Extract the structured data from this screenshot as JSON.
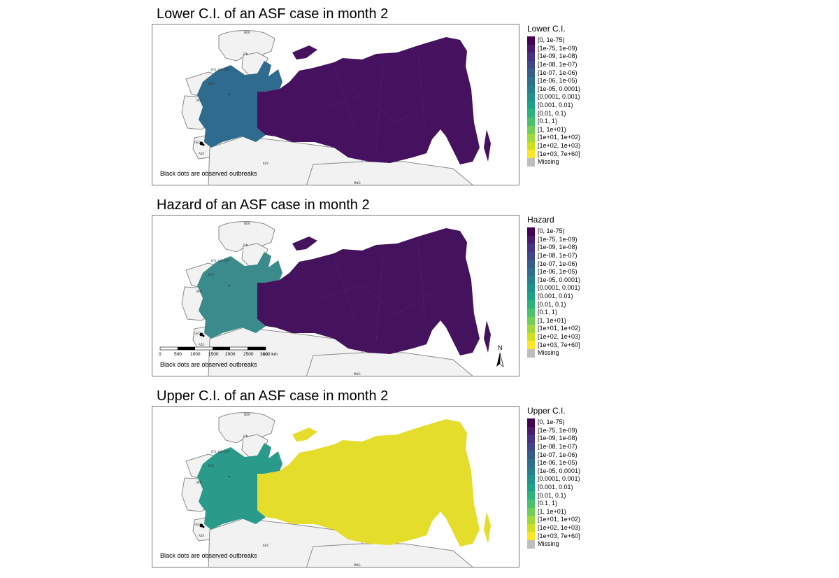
{
  "panels": [
    {
      "title": "Lower C.I. of an ASF case in month  2",
      "legend_title": "Lower C.I.",
      "note": "Black dots are observed outbreaks",
      "show_scale": false,
      "show_north": false,
      "west_color": "#2f6b8e",
      "east_color": "#46115f"
    },
    {
      "title": "Hazard of an ASF case in month  2",
      "legend_title": "Hazard",
      "note": "Black dots are observed outbreaks",
      "show_scale": true,
      "show_north": true,
      "west_color": "#3b8b8c",
      "east_color": "#45135e"
    },
    {
      "title": "Upper C.I. of an ASF case in month  2",
      "legend_title": "Upper C.I.",
      "note": "Black dots are observed outbreaks",
      "show_scale": false,
      "show_north": false,
      "west_color": "#2a9a8a",
      "east_color": "#e4dd2c"
    }
  ],
  "legend": {
    "entries": [
      {
        "label": "[0, 1e-75)",
        "color": "#440154"
      },
      {
        "label": "[1e-75, 1e-09)",
        "color": "#481b6d"
      },
      {
        "label": "[1e-09, 1e-08)",
        "color": "#46327e"
      },
      {
        "label": "[1e-08, 1e-07)",
        "color": "#3f4788"
      },
      {
        "label": "[1e-07, 1e-06)",
        "color": "#365c8d"
      },
      {
        "label": "[1e-06, 1e-05)",
        "color": "#2e6e8e"
      },
      {
        "label": "[1e-05, 0.0001)",
        "color": "#277f8e"
      },
      {
        "label": "[0.0001, 0.001)",
        "color": "#21918c"
      },
      {
        "label": "[0.001, 0.01)",
        "color": "#1fa187"
      },
      {
        "label": "[0.01, 0.1)",
        "color": "#2db27d"
      },
      {
        "label": "[0.1, 1)",
        "color": "#4ac16d"
      },
      {
        "label": "[1, 1e+01)",
        "color": "#71cf57"
      },
      {
        "label": "[1e+01, 1e+02)",
        "color": "#9fda3a"
      },
      {
        "label": "[1e+02, 1e+03)",
        "color": "#cfe11c"
      },
      {
        "label": "[1e+03, 7e+60]",
        "color": "#fde725"
      },
      {
        "label": "Missing",
        "color": "#bebebe"
      }
    ]
  },
  "map_labels": {
    "nor": "NOR",
    "fin": "FIN",
    "ltu": "LTU",
    "lva": "LVA",
    "est": "EST",
    "blr": "BLR",
    "ukr": "UKR",
    "geo": "GEO",
    "aze": "AZE",
    "kaz": "KAZ",
    "mng": "MNG"
  },
  "scale_bar": {
    "ticks": [
      "0",
      "500",
      "1000",
      "1500",
      "2000",
      "2500",
      "3000 km"
    ]
  },
  "north_arrow": {
    "label": "N"
  },
  "colors": {
    "neighbor_fill": "#f2f2f2",
    "border_stroke": "#8a8a8a",
    "frame": "#7a7a7a"
  }
}
